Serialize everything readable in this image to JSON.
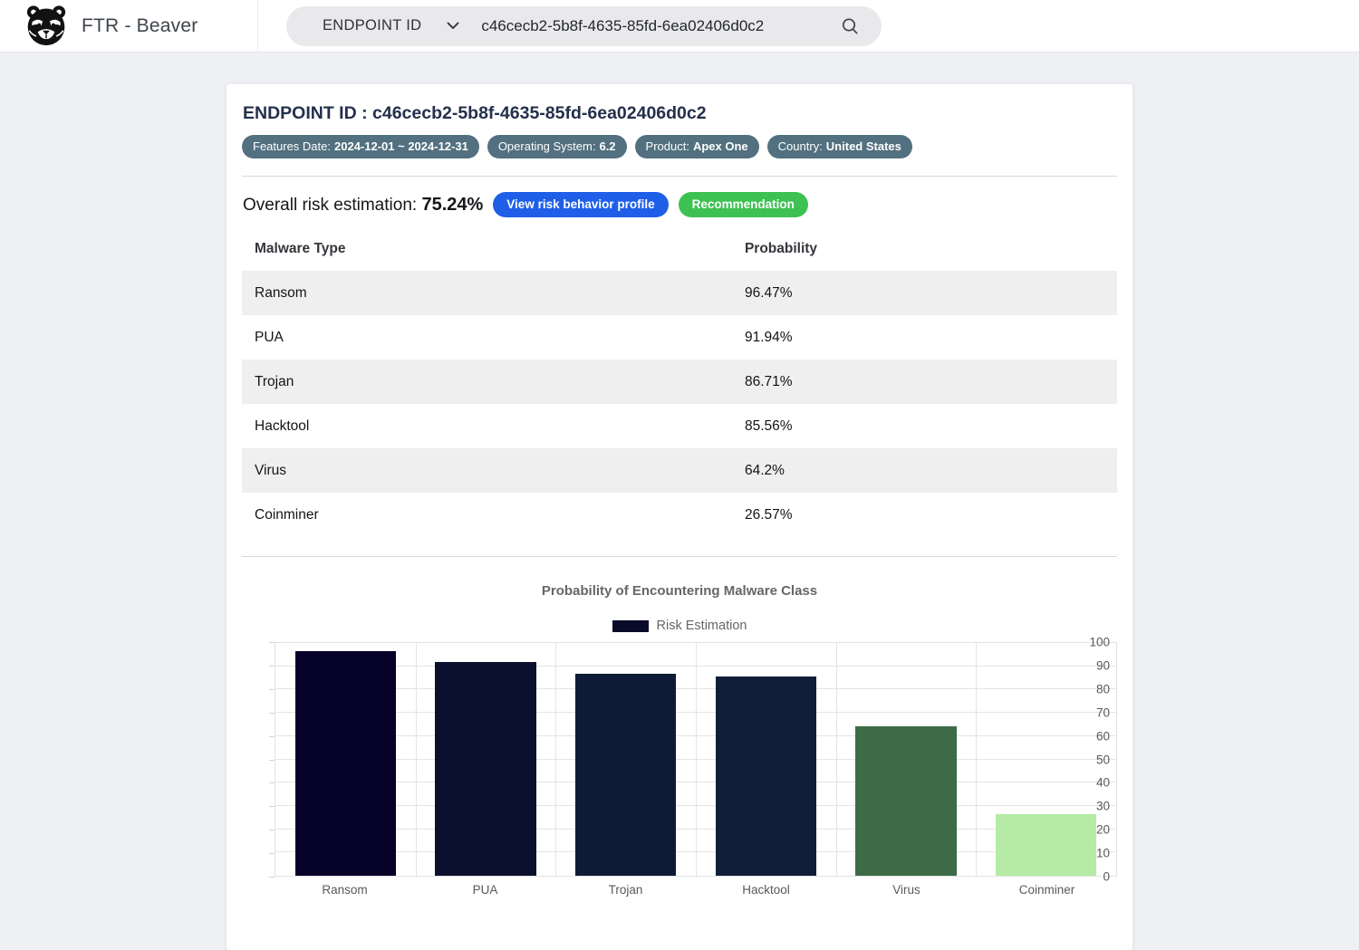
{
  "header": {
    "brand": "FTR - Beaver",
    "search": {
      "dropdown_label": "ENDPOINT ID",
      "value": "c46cecb2-5b8f-4635-85fd-6ea02406d0c2"
    }
  },
  "endpoint": {
    "title": "ENDPOINT ID : c46cecb2-5b8f-4635-85fd-6ea02406d0c2",
    "badges": [
      {
        "label": "Features Date:",
        "value": "2024-12-01 ~ 2024-12-31"
      },
      {
        "label": "Operating System:",
        "value": "6.2"
      },
      {
        "label": "Product:",
        "value": "Apex One"
      },
      {
        "label": "Country:",
        "value": "United States"
      }
    ],
    "badge_color": "#52707f",
    "risk": {
      "label": "Overall risk estimation:",
      "value": "75.24%",
      "view_profile_label": "View risk behavior profile",
      "view_profile_color": "#1f5fe8",
      "recommendation_label": "Recommendation",
      "recommendation_color": "#3ec153"
    }
  },
  "table": {
    "columns": [
      "Malware Type",
      "Probability"
    ],
    "rows": [
      {
        "type": "Ransom",
        "probability": "96.47%"
      },
      {
        "type": "PUA",
        "probability": "91.94%"
      },
      {
        "type": "Trojan",
        "probability": "86.71%"
      },
      {
        "type": "Hacktool",
        "probability": "85.56%"
      },
      {
        "type": "Virus",
        "probability": "64.2%"
      },
      {
        "type": "Coinminer",
        "probability": "26.57%"
      }
    ]
  },
  "chart_data": {
    "type": "bar",
    "title": "Probability of Encountering Malware Class",
    "legend": [
      {
        "label": "Risk Estimation",
        "color": "#0a0a2b"
      }
    ],
    "legend_position": "top-center",
    "categories": [
      "Ransom",
      "PUA",
      "Trojan",
      "Hacktool",
      "Virus",
      "Coinminer"
    ],
    "values": [
      96.47,
      91.94,
      86.71,
      85.56,
      64.2,
      26.57
    ],
    "bar_colors": [
      "#06022a",
      "#0a102e",
      "#0f1b36",
      "#111e38",
      "#3d6b46",
      "#b5eba4"
    ],
    "xlabel": "",
    "ylabel": "",
    "ylim": [
      0,
      100
    ],
    "ytick_step": 10,
    "grid": true
  }
}
